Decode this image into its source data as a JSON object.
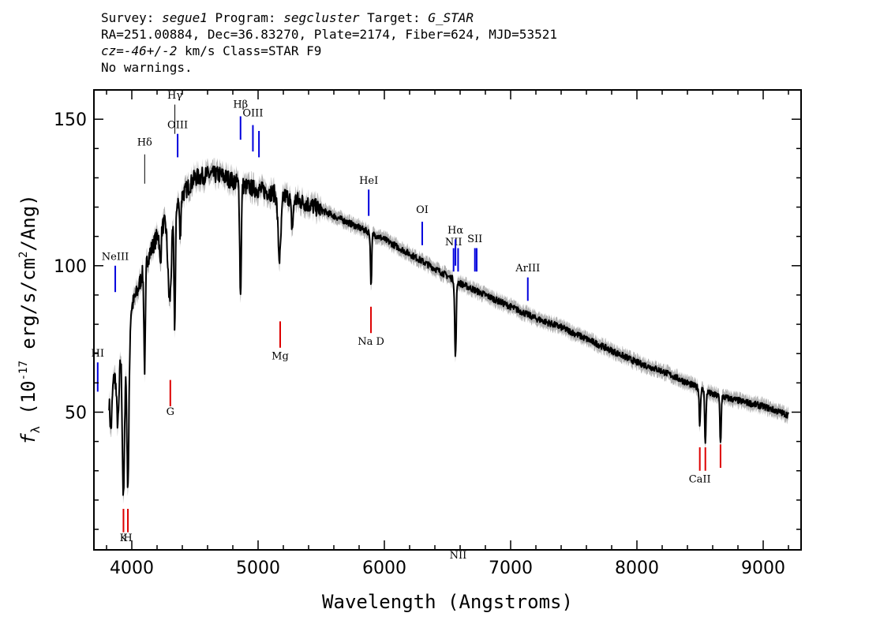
{
  "header": {
    "line1": {
      "survey_label": "Survey: ",
      "survey": "segue1",
      "program_label": " Program: ",
      "program": "segcluster",
      "target_label": " Target: ",
      "target": "G_STAR"
    },
    "line2": "RA=251.00884, Dec=36.83270, Plate=2174, Fiber=624, MJD=53521",
    "line3": {
      "cz_label": "cz=",
      "cz": "-46+/-2",
      "cz_unit": " km/s Class=STAR F9"
    },
    "line4": "No warnings."
  },
  "chart_data": {
    "type": "line",
    "xlabel": "Wavelength (Angstroms)",
    "ylabel": "f_λ (10^-17 erg/s/cm^2/Ang)",
    "xlim": [
      3700,
      9300
    ],
    "ylim": [
      3,
      160
    ],
    "x_ticks": [
      4000,
      5000,
      6000,
      7000,
      8000,
      9000
    ],
    "y_ticks": [
      50,
      100,
      150
    ],
    "grid": false,
    "colors": {
      "spectrum": "#000000",
      "error_band": "#b0b0b0",
      "emission": "#0000dd",
      "absorption": "#dd0000",
      "balmer": "#000000"
    },
    "continuum": [
      [
        3820,
        56
      ],
      [
        3860,
        62
      ],
      [
        3900,
        70
      ],
      [
        3950,
        78
      ],
      [
        4000,
        86
      ],
      [
        4050,
        92
      ],
      [
        4100,
        100
      ],
      [
        4150,
        105
      ],
      [
        4200,
        110
      ],
      [
        4300,
        118
      ],
      [
        4400,
        124
      ],
      [
        4500,
        130
      ],
      [
        4600,
        131
      ],
      [
        4700,
        131
      ],
      [
        4800,
        129
      ],
      [
        4900,
        127
      ],
      [
        5000,
        126
      ],
      [
        5200,
        124
      ],
      [
        5400,
        121
      ],
      [
        5600,
        117
      ],
      [
        5800,
        113
      ],
      [
        6000,
        109
      ],
      [
        6200,
        104
      ],
      [
        6400,
        99
      ],
      [
        6600,
        94
      ],
      [
        6800,
        90
      ],
      [
        7000,
        86
      ],
      [
        7200,
        82
      ],
      [
        7400,
        79
      ],
      [
        7600,
        75
      ],
      [
        7800,
        71
      ],
      [
        8000,
        67
      ],
      [
        8200,
        64
      ],
      [
        8400,
        60
      ],
      [
        8600,
        56
      ],
      [
        8800,
        54
      ],
      [
        9000,
        52
      ],
      [
        9200,
        49
      ]
    ],
    "absorption_features": [
      [
        3835,
        14,
        8
      ],
      [
        3890,
        22,
        10
      ],
      [
        3934,
        55,
        9
      ],
      [
        3969,
        55,
        9
      ],
      [
        4102,
        35,
        6
      ],
      [
        4226,
        12,
        6
      ],
      [
        4300,
        30,
        14
      ],
      [
        4340,
        40,
        6
      ],
      [
        4383,
        14,
        5
      ],
      [
        4861,
        38,
        6
      ],
      [
        5170,
        22,
        12
      ],
      [
        5270,
        10,
        8
      ],
      [
        5895,
        18,
        5
      ],
      [
        6563,
        26,
        6
      ],
      [
        8498,
        12,
        5
      ],
      [
        8542,
        18,
        5
      ],
      [
        8662,
        16,
        5
      ]
    ],
    "line_markers": [
      {
        "label": "HI",
        "wave": 3730,
        "kind": "emission",
        "y1": 57,
        "y2": 67,
        "label_y": 69
      },
      {
        "label": "NeIII",
        "wave": 3869,
        "kind": "emission",
        "y1": 91,
        "y2": 100,
        "label_y": 102
      },
      {
        "label": "Hδ",
        "wave": 4102,
        "kind": "balmer",
        "y1": 138,
        "y2": 128,
        "label_y": 141
      },
      {
        "label": "Hγ",
        "wave": 4341,
        "kind": "balmer",
        "y1": 155,
        "y2": 145,
        "label_y": 157
      },
      {
        "label": "OIII",
        "wave": 4363,
        "kind": "emission",
        "y1": 137,
        "y2": 145,
        "label_y": 147
      },
      {
        "label": "Hβ",
        "wave": 4861,
        "kind": "emission",
        "y1": 143,
        "y2": 151,
        "label_y": 154
      },
      {
        "label": "OIII",
        "wave": 4959,
        "kind": "emission",
        "y1": 139,
        "y2": 148,
        "label_y": 151
      },
      {
        "label": "",
        "wave": 5007,
        "kind": "emission",
        "y1": 137,
        "y2": 146,
        "label_y": 0
      },
      {
        "label": "HeI",
        "wave": 5876,
        "kind": "emission",
        "y1": 117,
        "y2": 126,
        "label_y": 128
      },
      {
        "label": "OI",
        "wave": 6300,
        "kind": "emission",
        "y1": 107,
        "y2": 115,
        "label_y": 118
      },
      {
        "label": "NII",
        "wave": 6548,
        "kind": "emission",
        "y1": 98,
        "y2": 106,
        "label_y": 107
      },
      {
        "label": "Hα",
        "wave": 6563,
        "kind": "emission",
        "y1": 100,
        "y2": 109,
        "label_y": 111
      },
      {
        "label": "NII",
        "wave": 6584,
        "kind": "emission",
        "y1": 98,
        "y2": 106,
        "label_y": 0
      },
      {
        "label": "SII",
        "wave": 6717,
        "kind": "emission",
        "y1": 98,
        "y2": 106,
        "label_y": 108
      },
      {
        "label": "",
        "wave": 6731,
        "kind": "emission",
        "y1": 98,
        "y2": 106,
        "label_y": 0
      },
      {
        "label": "ArIII",
        "wave": 7136,
        "kind": "emission",
        "y1": 88,
        "y2": 96,
        "label_y": 98
      },
      {
        "label": "K",
        "wave": 3934,
        "kind": "absorption",
        "y1": 9,
        "y2": 17,
        "label_y": 6
      },
      {
        "label": "H",
        "wave": 3969,
        "kind": "absorption",
        "y1": 9,
        "y2": 17,
        "label_y": 6
      },
      {
        "label": "G",
        "wave": 4305,
        "kind": "absorption",
        "y1": 52,
        "y2": 61,
        "label_y": 49
      },
      {
        "label": "Mg",
        "wave": 5175,
        "kind": "absorption",
        "y1": 72,
        "y2": 81,
        "label_y": 68
      },
      {
        "label": "Na D",
        "wave": 5894,
        "kind": "absorption",
        "y1": 77,
        "y2": 86,
        "label_y": 73
      },
      {
        "label": "CaII",
        "wave": 8498,
        "kind": "absorption",
        "y1": 30,
        "y2": 38,
        "label_y": 26
      },
      {
        "label": "",
        "wave": 8542,
        "kind": "absorption",
        "y1": 30,
        "y2": 38,
        "label_y": 0
      },
      {
        "label": "",
        "wave": 8662,
        "kind": "absorption",
        "y1": 31,
        "y2": 39,
        "label_y": 0
      }
    ]
  }
}
